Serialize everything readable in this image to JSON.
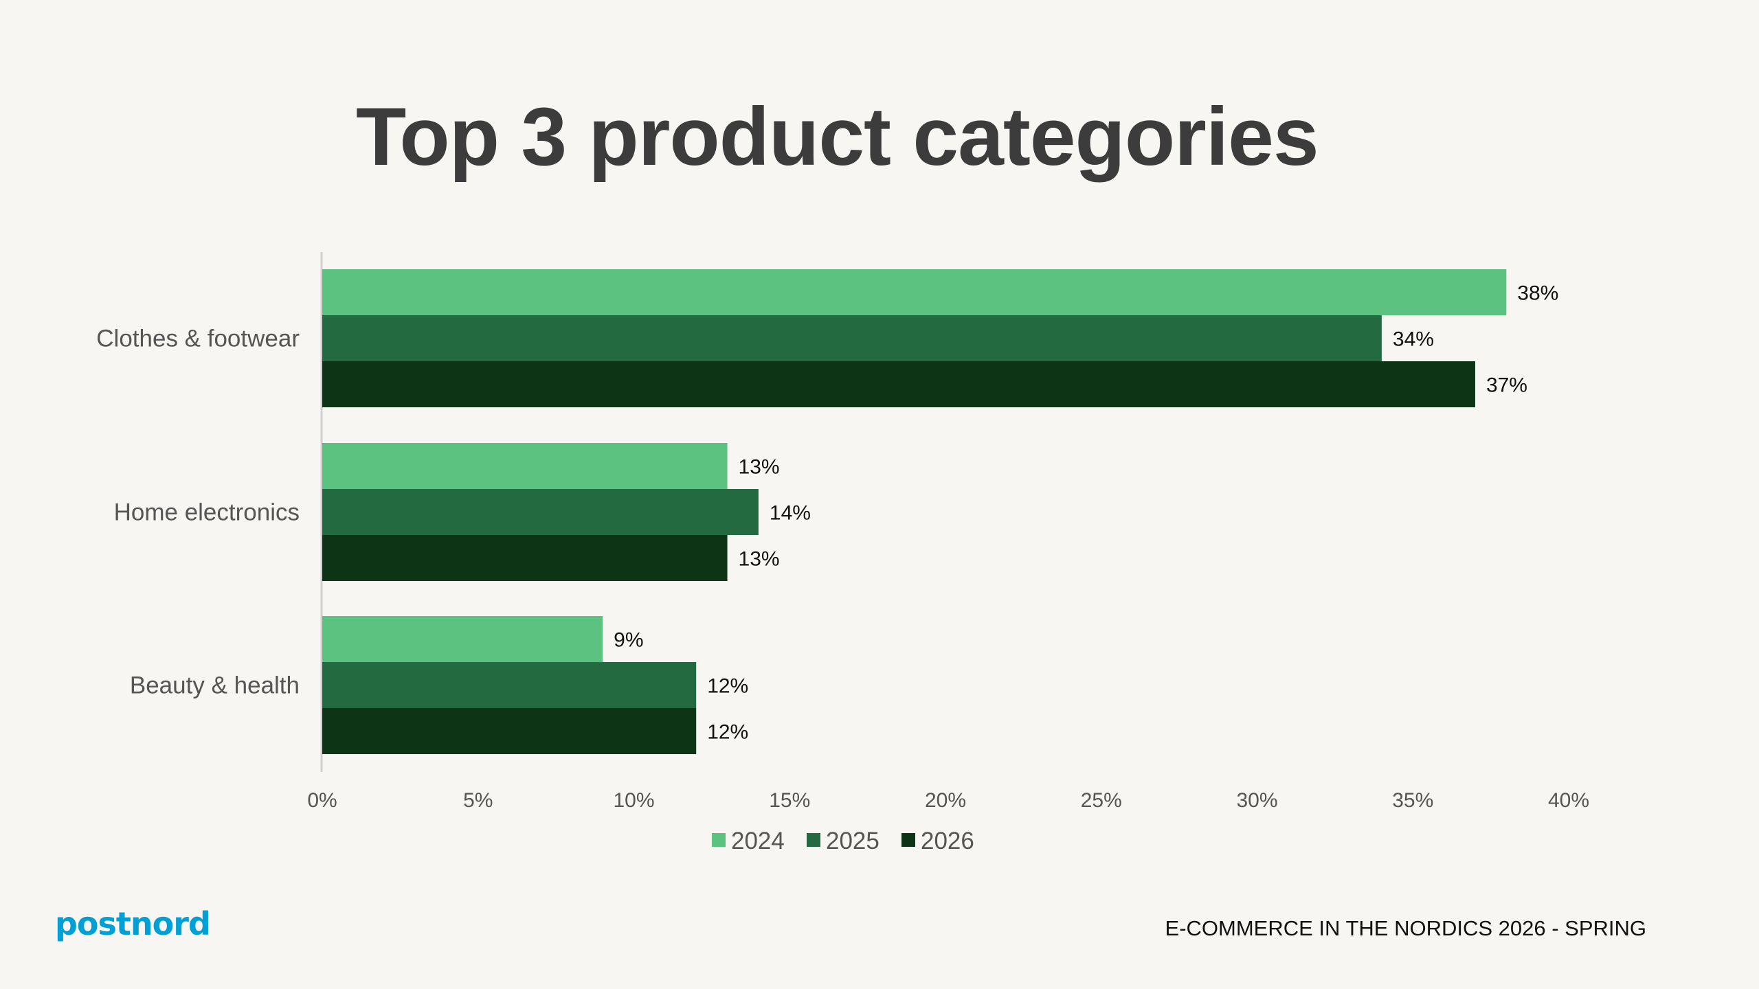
{
  "title": "Top 3 product categories",
  "footer": "E-COMMERCE IN THE NORDICS 2026 - SPRING",
  "logo_text": "postnord",
  "colors": {
    "2024": "#5bc27f",
    "2025": "#246a40",
    "2026": "#0d3414",
    "logo": "#00a0d6",
    "background": "#f7f6f2"
  },
  "chart_data": {
    "type": "bar",
    "orientation": "horizontal",
    "title": "Top 3 product categories",
    "categories": [
      "Clothes & footwear",
      "Home electronics",
      "Beauty & health"
    ],
    "series": [
      {
        "name": "2024",
        "values": [
          38,
          13,
          9
        ]
      },
      {
        "name": "2025",
        "values": [
          34,
          14,
          12
        ]
      },
      {
        "name": "2026",
        "values": [
          37,
          13,
          12
        ]
      }
    ],
    "xlim": [
      0,
      40
    ],
    "xticks": [
      "0%",
      "5%",
      "10%",
      "15%",
      "20%",
      "25%",
      "30%",
      "35%",
      "40%"
    ],
    "legend": "bottom",
    "grid": false,
    "value_suffix": "%"
  }
}
